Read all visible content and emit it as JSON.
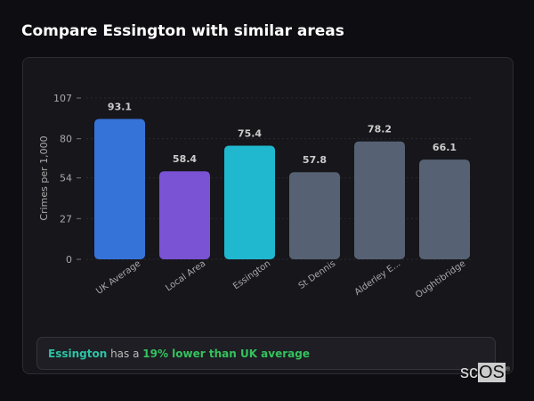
{
  "title": "Compare Essington with similar areas",
  "chart_data": {
    "type": "bar",
    "categories": [
      "UK Average",
      "Local Area",
      "Essington",
      "St Dennis",
      "Alderley E...",
      "Oughtibridge"
    ],
    "values": [
      93.1,
      58.4,
      75.4,
      57.8,
      78.2,
      66.1
    ],
    "colors": [
      "#3673d9",
      "#7a52d4",
      "#1fb8cf",
      "#566273",
      "#566273",
      "#566273"
    ],
    "ylabel": "Crimes per 1,000",
    "xlabel": "",
    "ylim": [
      0,
      107
    ],
    "yticks": [
      0,
      27,
      54,
      80,
      107
    ],
    "grid": true
  },
  "callout": {
    "area": "Essington",
    "middle": " has a ",
    "comparison": "19% lower than UK average"
  },
  "watermark": "scOS"
}
